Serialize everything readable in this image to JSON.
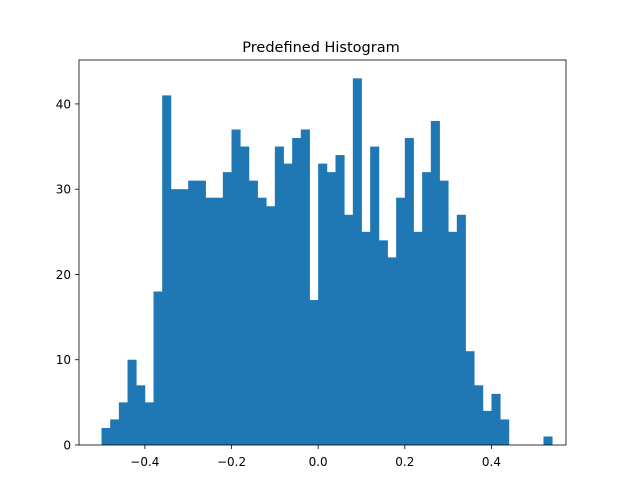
{
  "chart_data": {
    "type": "bar",
    "title": "Predefined Histogram",
    "xlabel": "",
    "ylabel": "",
    "bin_start": -0.5,
    "bin_width": 0.02,
    "values": [
      2,
      3,
      5,
      10,
      7,
      5,
      18,
      41,
      30,
      30,
      31,
      31,
      29,
      29,
      32,
      37,
      35,
      31,
      29,
      28,
      35,
      33,
      36,
      37,
      17,
      33,
      32,
      34,
      27,
      43,
      25,
      35,
      24,
      22,
      29,
      36,
      25,
      32,
      38,
      31,
      25,
      27,
      11,
      7,
      4,
      6,
      3,
      0,
      0,
      0,
      0,
      1
    ],
    "xlim": [
      -0.552,
      0.572
    ],
    "ylim": [
      0,
      45.15
    ],
    "xticks": [
      -0.4,
      -0.2,
      0.0,
      0.2,
      0.4
    ],
    "xtick_labels": [
      "−0.4",
      "−0.2",
      "0.0",
      "0.2",
      "0.4"
    ],
    "yticks": [
      0,
      10,
      20,
      30,
      40
    ],
    "ytick_labels": [
      "0",
      "10",
      "20",
      "30",
      "40"
    ],
    "bar_color": "#1f77b4",
    "grid": false
  }
}
